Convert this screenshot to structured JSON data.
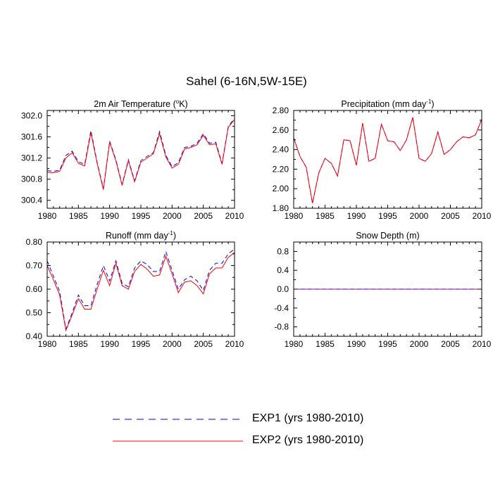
{
  "figure": {
    "title": "Sahel (6-16N,5W-15E)"
  },
  "legend": {
    "entries": [
      {
        "label": "EXP1 (yrs 1980-2010)",
        "color": "#0000ff",
        "style": "dashed"
      },
      {
        "label": "EXP2 (yrs 1980-2010)",
        "color": "#ff0000",
        "style": "solid"
      }
    ]
  },
  "chart_data": [
    {
      "id": "temp",
      "type": "line",
      "title": "2m Air Temperature (°K)",
      "title_parts": [
        "2m Air Temperature (",
        "o",
        "K)"
      ],
      "xlim": [
        1980,
        2010
      ],
      "ylim": [
        300.25,
        302.1
      ],
      "xticks": [
        1980,
        1985,
        1990,
        1995,
        2000,
        2005,
        2010
      ],
      "yticks": [
        300.4,
        300.8,
        301.2,
        301.6,
        302.0
      ],
      "ytick_labels": [
        "300.4",
        "300.8",
        "301.2",
        "301.6",
        "302.0"
      ],
      "x": [
        1980,
        1981,
        1982,
        1983,
        1984,
        1985,
        1986,
        1987,
        1988,
        1989,
        1990,
        1991,
        1992,
        1993,
        1994,
        1995,
        1996,
        1997,
        1998,
        1999,
        2000,
        2001,
        2002,
        2003,
        2004,
        2005,
        2006,
        2007,
        2008,
        2009,
        2010
      ],
      "series": [
        {
          "name": "EXP1",
          "color": "#0000ff",
          "dashed": true,
          "values": [
            300.96,
            300.95,
            300.97,
            301.25,
            301.33,
            301.13,
            301.08,
            301.72,
            301.12,
            300.62,
            301.52,
            301.17,
            300.7,
            301.17,
            300.77,
            301.15,
            301.23,
            301.3,
            301.7,
            301.25,
            301.04,
            301.11,
            301.4,
            301.42,
            301.48,
            301.66,
            301.48,
            301.5,
            301.1,
            301.8,
            301.95
          ]
        },
        {
          "name": "EXP2",
          "color": "#ff0000",
          "dashed": false,
          "values": [
            300.93,
            300.92,
            300.95,
            301.2,
            301.3,
            301.1,
            301.05,
            301.68,
            301.1,
            300.6,
            301.5,
            301.15,
            300.68,
            301.15,
            300.75,
            301.12,
            301.2,
            301.28,
            301.66,
            301.22,
            301.01,
            301.08,
            301.37,
            301.4,
            301.45,
            301.63,
            301.45,
            301.47,
            301.08,
            301.78,
            301.93
          ]
        }
      ]
    },
    {
      "id": "precip",
      "type": "line",
      "title": "Precipitation (mm day-1)",
      "title_parts": [
        "Precipitation (mm day",
        "-1",
        ")"
      ],
      "xlim": [
        1980,
        2010
      ],
      "ylim": [
        1.8,
        2.8
      ],
      "xticks": [
        1980,
        1985,
        1990,
        1995,
        2000,
        2005,
        2010
      ],
      "yticks": [
        1.8,
        2.0,
        2.2,
        2.4,
        2.6,
        2.8
      ],
      "ytick_labels": [
        "1.80",
        "2.00",
        "2.20",
        "2.40",
        "2.60",
        "2.80"
      ],
      "x": [
        1980,
        1981,
        1982,
        1983,
        1984,
        1985,
        1986,
        1987,
        1988,
        1989,
        1990,
        1991,
        1992,
        1993,
        1994,
        1995,
        1996,
        1997,
        1998,
        1999,
        2000,
        2001,
        2002,
        2003,
        2004,
        2005,
        2006,
        2007,
        2008,
        2009,
        2010
      ],
      "series": [
        {
          "name": "EXP1",
          "color": "#0000ff",
          "dashed": true,
          "values": [
            2.52,
            2.33,
            2.22,
            1.85,
            2.16,
            2.31,
            2.26,
            2.13,
            2.5,
            2.49,
            2.24,
            2.67,
            2.28,
            2.31,
            2.66,
            2.49,
            2.48,
            2.39,
            2.5,
            2.73,
            2.31,
            2.28,
            2.36,
            2.58,
            2.35,
            2.4,
            2.48,
            2.53,
            2.52,
            2.55,
            2.71
          ]
        },
        {
          "name": "EXP2",
          "color": "#ff0000",
          "dashed": false,
          "values": [
            2.52,
            2.33,
            2.22,
            1.85,
            2.16,
            2.31,
            2.26,
            2.13,
            2.5,
            2.49,
            2.24,
            2.67,
            2.28,
            2.31,
            2.66,
            2.49,
            2.48,
            2.39,
            2.5,
            2.73,
            2.31,
            2.28,
            2.36,
            2.58,
            2.35,
            2.4,
            2.48,
            2.53,
            2.52,
            2.55,
            2.71
          ]
        }
      ]
    },
    {
      "id": "runoff",
      "type": "line",
      "title": "Runoff (mm day-1)",
      "title_parts": [
        "Runoff (mm day",
        "-1",
        ")"
      ],
      "xlim": [
        1980,
        2010
      ],
      "ylim": [
        0.4,
        0.8
      ],
      "xticks": [
        1980,
        1985,
        1990,
        1995,
        2000,
        2005,
        2010
      ],
      "yticks": [
        0.4,
        0.5,
        0.6,
        0.7,
        0.8
      ],
      "ytick_labels": [
        "0.40",
        "0.50",
        "0.60",
        "0.70",
        "0.80"
      ],
      "x": [
        1980,
        1981,
        1982,
        1983,
        1984,
        1985,
        1986,
        1987,
        1988,
        1989,
        1990,
        1991,
        1992,
        1993,
        1994,
        1995,
        1996,
        1997,
        1998,
        1999,
        2000,
        2001,
        2002,
        2003,
        2004,
        2005,
        2006,
        2007,
        2008,
        2009,
        2010
      ],
      "series": [
        {
          "name": "EXP1",
          "color": "#0000ff",
          "dashed": true,
          "values": [
            0.72,
            0.655,
            0.59,
            0.43,
            0.5,
            0.575,
            0.53,
            0.53,
            0.62,
            0.7,
            0.635,
            0.72,
            0.625,
            0.61,
            0.69,
            0.72,
            0.705,
            0.675,
            0.675,
            0.76,
            0.68,
            0.6,
            0.64,
            0.655,
            0.635,
            0.595,
            0.68,
            0.71,
            0.71,
            0.75,
            0.77
          ]
        },
        {
          "name": "EXP2",
          "color": "#ff0000",
          "dashed": false,
          "values": [
            0.7,
            0.64,
            0.575,
            0.425,
            0.49,
            0.56,
            0.515,
            0.515,
            0.6,
            0.68,
            0.615,
            0.71,
            0.615,
            0.6,
            0.675,
            0.705,
            0.685,
            0.655,
            0.66,
            0.74,
            0.665,
            0.585,
            0.63,
            0.635,
            0.615,
            0.58,
            0.665,
            0.69,
            0.69,
            0.735,
            0.755
          ]
        }
      ]
    },
    {
      "id": "snow",
      "type": "line",
      "title": "Snow Depth (m)",
      "title_parts": [
        "Snow Depth (m)",
        "",
        ""
      ],
      "xlim": [
        1980,
        2010
      ],
      "ylim": [
        -1.0,
        1.0
      ],
      "xticks": [
        1980,
        1985,
        1990,
        1995,
        2000,
        2005,
        2010
      ],
      "yticks": [
        -0.8,
        -0.4,
        0.0,
        0.4,
        0.8
      ],
      "ytick_labels": [
        "-0.8",
        "-0.4",
        "0.0",
        "0.4",
        "0.8"
      ],
      "x": [
        1980,
        2010
      ],
      "series": [
        {
          "name": "EXP2",
          "color": "#ff0000",
          "dashed": false,
          "values": [
            0.0,
            0.0
          ]
        },
        {
          "name": "EXP1",
          "color": "#0000ff",
          "dashed": true,
          "values": [
            0.0,
            0.0
          ]
        }
      ]
    }
  ]
}
